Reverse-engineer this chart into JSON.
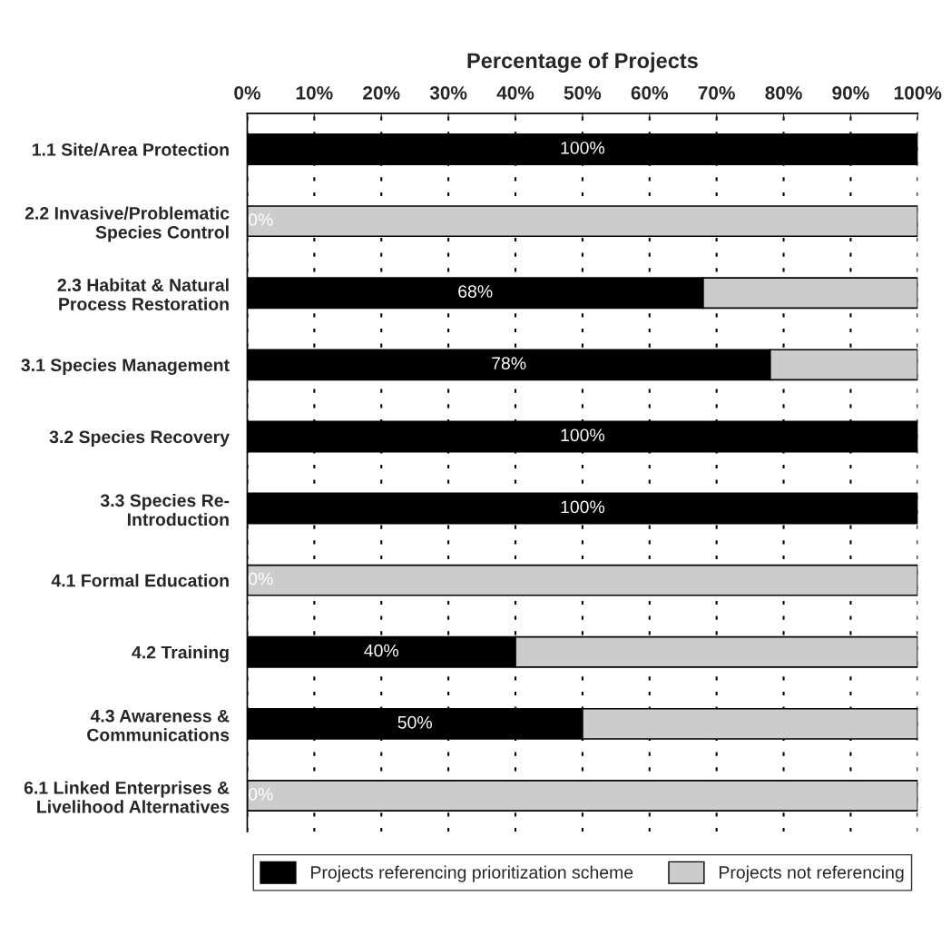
{
  "chart_data": {
    "type": "bar",
    "orientation": "horizontal",
    "stacked": true,
    "xlabel": "Percentage of Projects",
    "categories": [
      "1.1 Site/Area Protection",
      "2.2 Invasive/Problematic\nSpecies Control",
      "2.3 Habitat & Natural\nProcess Restoration",
      "3.1 Species Management",
      "3.2 Species Recovery",
      "3.3 Species Re-\nIntroduction",
      "4.1 Formal Education",
      "4.2 Training",
      "4.3 Awareness &\nCommunications",
      "6.1 Linked Enterprises &\nLivelihood Alternatives"
    ],
    "series": [
      {
        "name": "Projects referencing prioritization scheme",
        "color": "#000000",
        "values": [
          100,
          0,
          68,
          78,
          100,
          100,
          0,
          40,
          50,
          0
        ],
        "value_labels": [
          "100%",
          "0%",
          "68%",
          "78%",
          "100%",
          "100%",
          "0%",
          "40%",
          "50%",
          "0%"
        ]
      },
      {
        "name": "Projects not referencing",
        "color": "#cccccc",
        "values": [
          0,
          100,
          32,
          22,
          0,
          0,
          100,
          60,
          50,
          100
        ]
      }
    ],
    "xlim": [
      0,
      100
    ],
    "xticks": [
      {
        "value": 0,
        "label": "0%"
      },
      {
        "value": 10,
        "label": "10%"
      },
      {
        "value": 20,
        "label": "20%"
      },
      {
        "value": 30,
        "label": "30%"
      },
      {
        "value": 40,
        "label": "40%"
      },
      {
        "value": 50,
        "label": "50%"
      },
      {
        "value": 60,
        "label": "60%"
      },
      {
        "value": 70,
        "label": "70%"
      },
      {
        "value": 80,
        "label": "80%"
      },
      {
        "value": 90,
        "label": "90%"
      },
      {
        "value": 100,
        "label": "100%"
      }
    ],
    "grid": "x",
    "legend": "bottom"
  }
}
